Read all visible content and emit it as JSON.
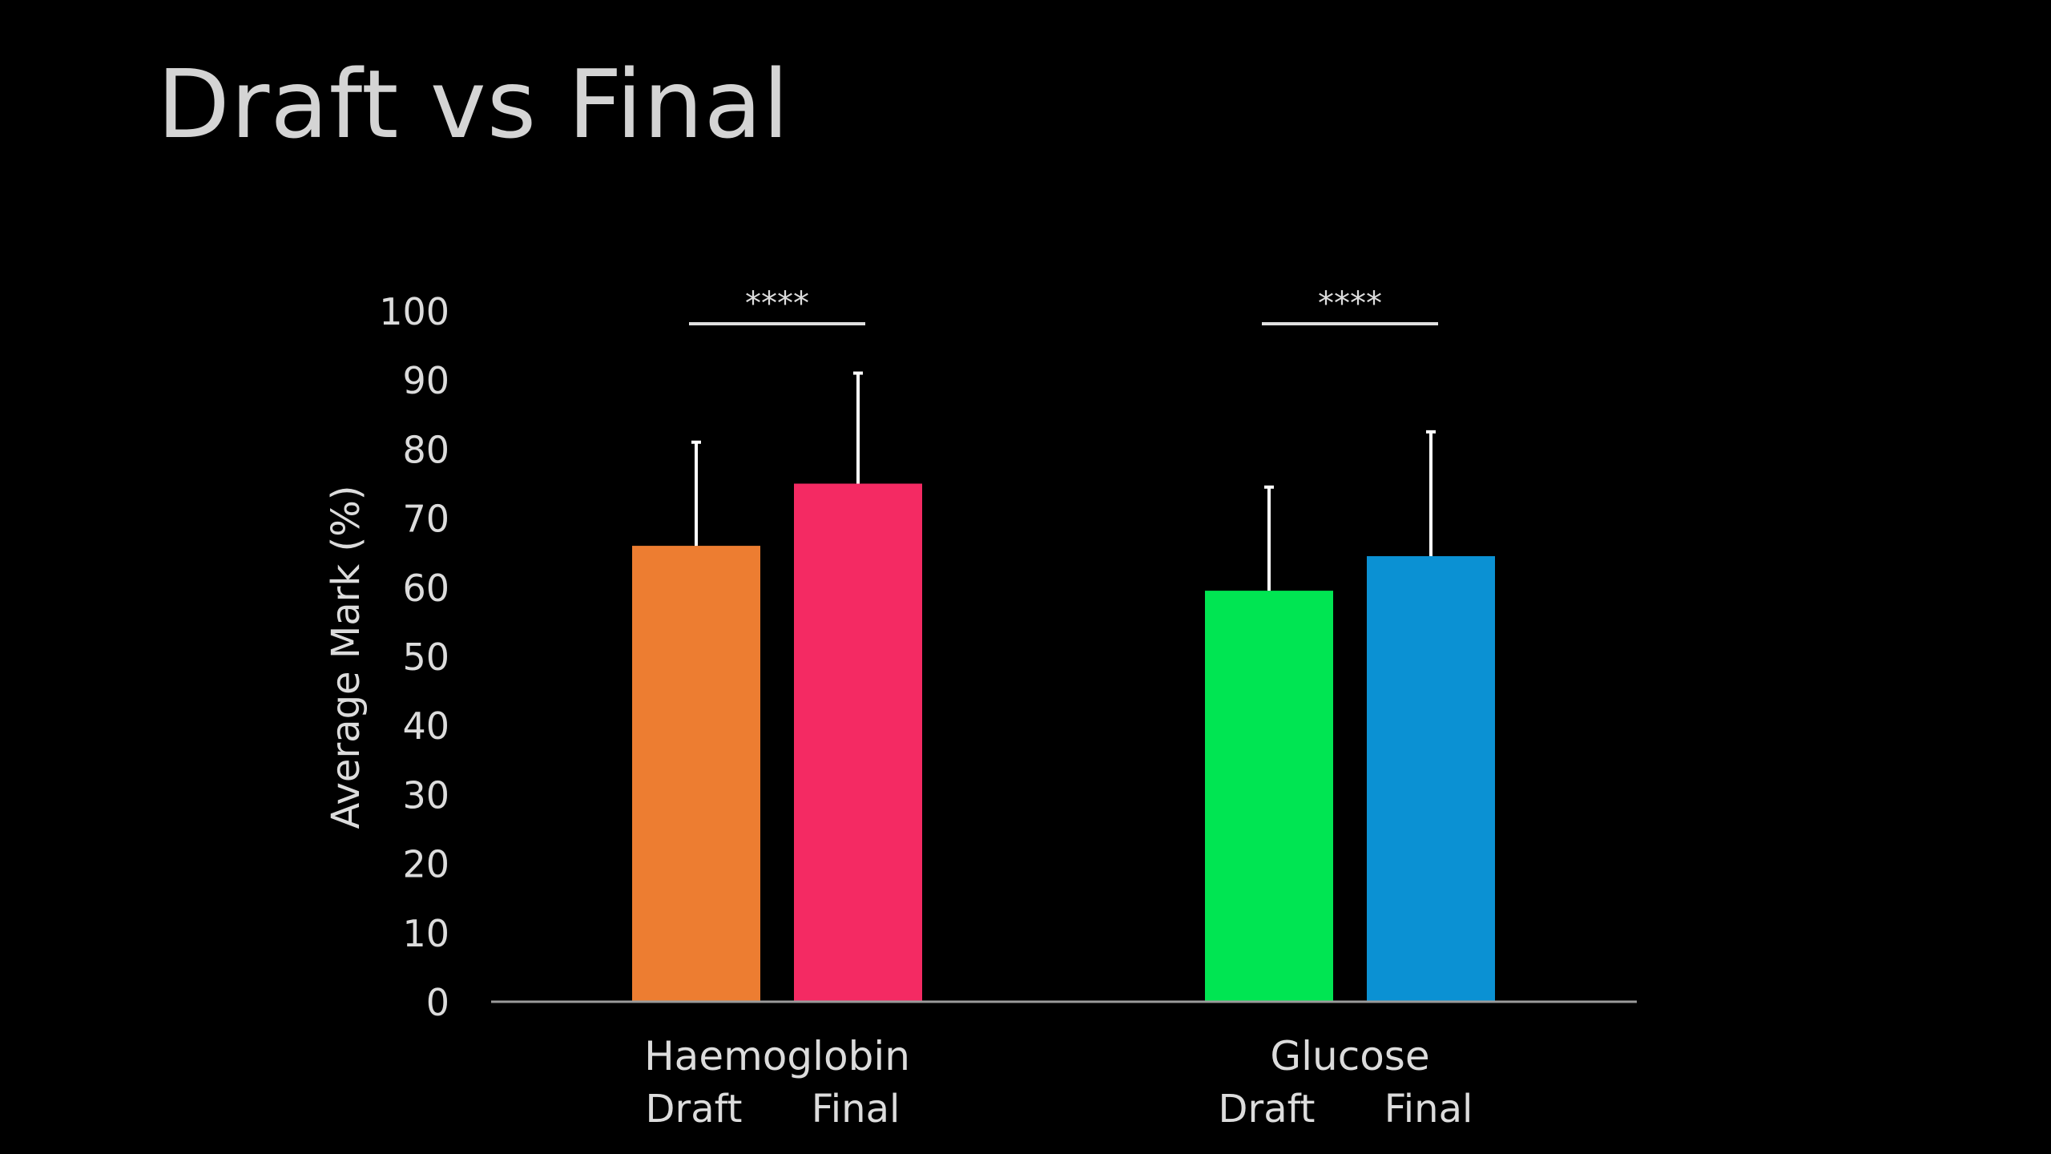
{
  "slide": {
    "title": "Draft vs Final"
  },
  "chart_data": {
    "type": "bar",
    "ylabel": "Average Mark (%)",
    "ylim": [
      0,
      100
    ],
    "yticks": [
      0,
      10,
      20,
      30,
      40,
      50,
      60,
      70,
      80,
      90,
      100
    ],
    "grid": false,
    "legend": "none",
    "groups": [
      {
        "name": "Haemoglobin",
        "significance": "****",
        "bars": [
          {
            "label": "Draft",
            "value": 66,
            "error": 15,
            "color": "#ed7d31"
          },
          {
            "label": "Final",
            "value": 75,
            "error": 16,
            "color": "#f42a63"
          }
        ]
      },
      {
        "name": "Glucose",
        "significance": "****",
        "bars": [
          {
            "label": "Draft",
            "value": 59.5,
            "error": 15,
            "color": "#00e552"
          },
          {
            "label": "Final",
            "value": 64.5,
            "error": 18,
            "color": "#0b91d3"
          }
        ]
      }
    ]
  }
}
